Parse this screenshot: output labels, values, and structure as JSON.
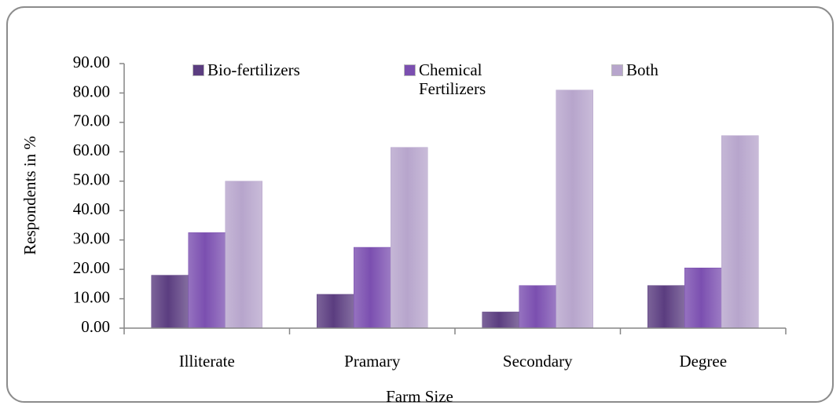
{
  "chart_data": {
    "type": "bar",
    "x_label": "Farm Size",
    "y_label": "Respondents in %",
    "categories": [
      "Illiterate",
      "Pramary",
      "Secondary",
      "Degree"
    ],
    "series": [
      {
        "name": "Bio-fertilizers",
        "color": "#5b3d80",
        "values": [
          18,
          11.5,
          5.5,
          14.5
        ]
      },
      {
        "name": "Chemical Fertilizers",
        "color": "#7b4fb0",
        "values": [
          32.5,
          27.5,
          14.5,
          20.5
        ]
      },
      {
        "name": "Both",
        "color": "#b7a5cc",
        "values": [
          50,
          61.5,
          81,
          65.5
        ]
      }
    ],
    "ylim": [
      0,
      90
    ],
    "yticks": [
      {
        "value": 0,
        "label": "0.00"
      },
      {
        "value": 10,
        "label": "10.00"
      },
      {
        "value": 20,
        "label": "20.00"
      },
      {
        "value": 30,
        "label": "30.00"
      },
      {
        "value": 40,
        "label": "40.00"
      },
      {
        "value": 50,
        "label": "50.00"
      },
      {
        "value": 60,
        "label": "60.00"
      },
      {
        "value": 70,
        "label": "70.00"
      },
      {
        "value": 80,
        "label": "80.00"
      },
      {
        "value": 90,
        "label": "90.00"
      }
    ],
    "legend": "top"
  }
}
